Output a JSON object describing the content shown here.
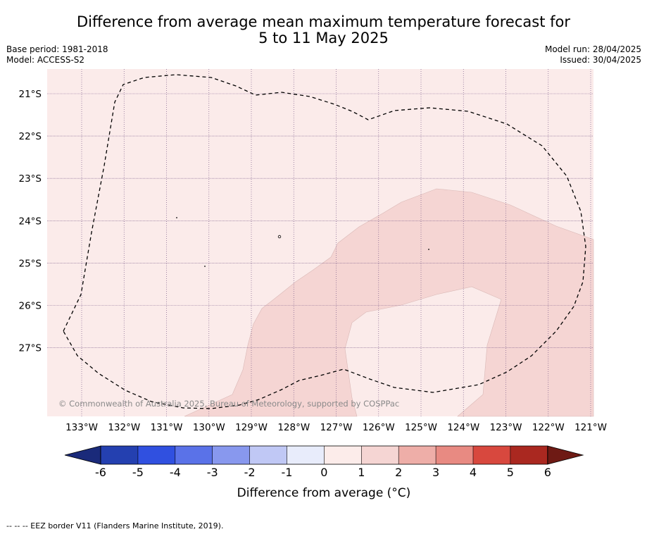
{
  "title_line1": "Difference from average mean maximum temperature forecast for",
  "title_line2": "5 to 11 May 2025",
  "base_period": "Base period: 1981-2018",
  "model": "Model: ACCESS-S2",
  "model_run": "Model run: 28/04/2025",
  "issued": "Issued: 30/04/2025",
  "lat_labels": [
    "21°S",
    "22°S",
    "23°S",
    "24°S",
    "25°S",
    "26°S",
    "27°S"
  ],
  "lon_labels": [
    "133°W",
    "132°W",
    "131°W",
    "130°W",
    "129°W",
    "128°W",
    "127°W",
    "126°W",
    "125°W",
    "124°W",
    "123°W",
    "122°W",
    "121°W"
  ],
  "copyright": "© Commonwealth of Australia 2025, Bureau of Meteorology, supported by COSPPac",
  "colorbar": {
    "ticks": [
      "-6",
      "-5",
      "-4",
      "-3",
      "-2",
      "-1",
      "0",
      "1",
      "2",
      "3",
      "4",
      "5",
      "6"
    ],
    "colors": [
      "#1a2a7a",
      "#2440b0",
      "#3050e0",
      "#5a72e8",
      "#8898ee",
      "#c0c8f5",
      "#e8ecfb",
      "#fcecea",
      "#f5d5d3",
      "#eeaea8",
      "#e88a82",
      "#d8483e",
      "#aa2820",
      "#6e1a14"
    ],
    "label": "Difference from average (°C)"
  },
  "map_colors": {
    "background": "#fbebea",
    "warm_region": "#f5d5d3"
  },
  "footer": "-- -- -- EEZ border V11 (Flanders Marine Institute, 2019)."
}
